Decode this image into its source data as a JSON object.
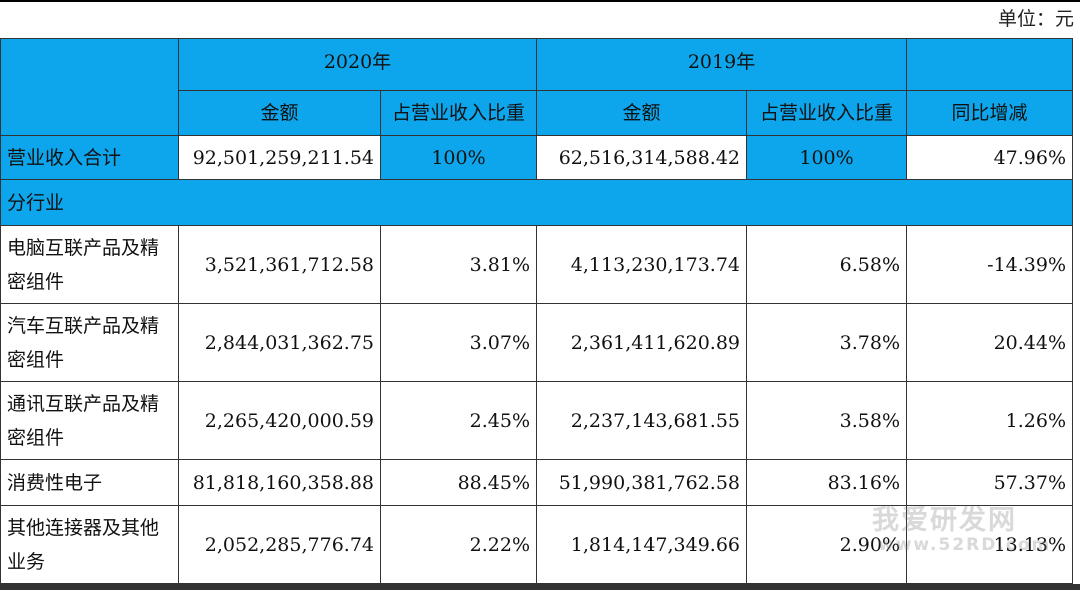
{
  "unit_label": "单位：元",
  "header": {
    "year_2020": "2020年",
    "year_2019": "2019年",
    "amount": "金额",
    "ratio": "占营业收入比重",
    "yoy": "同比增减"
  },
  "total": {
    "label": "营业收入合计",
    "amount_2020": "92,501,259,211.54",
    "ratio_2020": "100%",
    "amount_2019": "62,516,314,588.42",
    "ratio_2019": "100%",
    "yoy": "47.96%"
  },
  "section_label": "分行业",
  "rows": [
    {
      "label": "电脑互联产品及精密组件",
      "amount_2020": "3,521,361,712.58",
      "ratio_2020": "3.81%",
      "amount_2019": "4,113,230,173.74",
      "ratio_2019": "6.58%",
      "yoy": "-14.39%"
    },
    {
      "label": "汽车互联产品及精密组件",
      "amount_2020": "2,844,031,362.75",
      "ratio_2020": "3.07%",
      "amount_2019": "2,361,411,620.89",
      "ratio_2019": "3.78%",
      "yoy": "20.44%"
    },
    {
      "label": "通讯互联产品及精密组件",
      "amount_2020": "2,265,420,000.59",
      "ratio_2020": "2.45%",
      "amount_2019": "2,237,143,681.55",
      "ratio_2019": "3.58%",
      "yoy": "1.26%"
    },
    {
      "label": "消费性电子",
      "amount_2020": "81,818,160,358.88",
      "ratio_2020": "88.45%",
      "amount_2019": "51,990,381,762.58",
      "ratio_2019": "83.16%",
      "yoy": "57.37%"
    },
    {
      "label": "其他连接器及其他业务",
      "amount_2020": "2,052,285,776.74",
      "ratio_2020": "2.22%",
      "amount_2019": "1,814,147,349.66",
      "ratio_2019": "2.90%",
      "yoy": "13.13%"
    }
  ],
  "watermark": {
    "line1": "我爱研发网",
    "line2": "www.52RD.com"
  }
}
